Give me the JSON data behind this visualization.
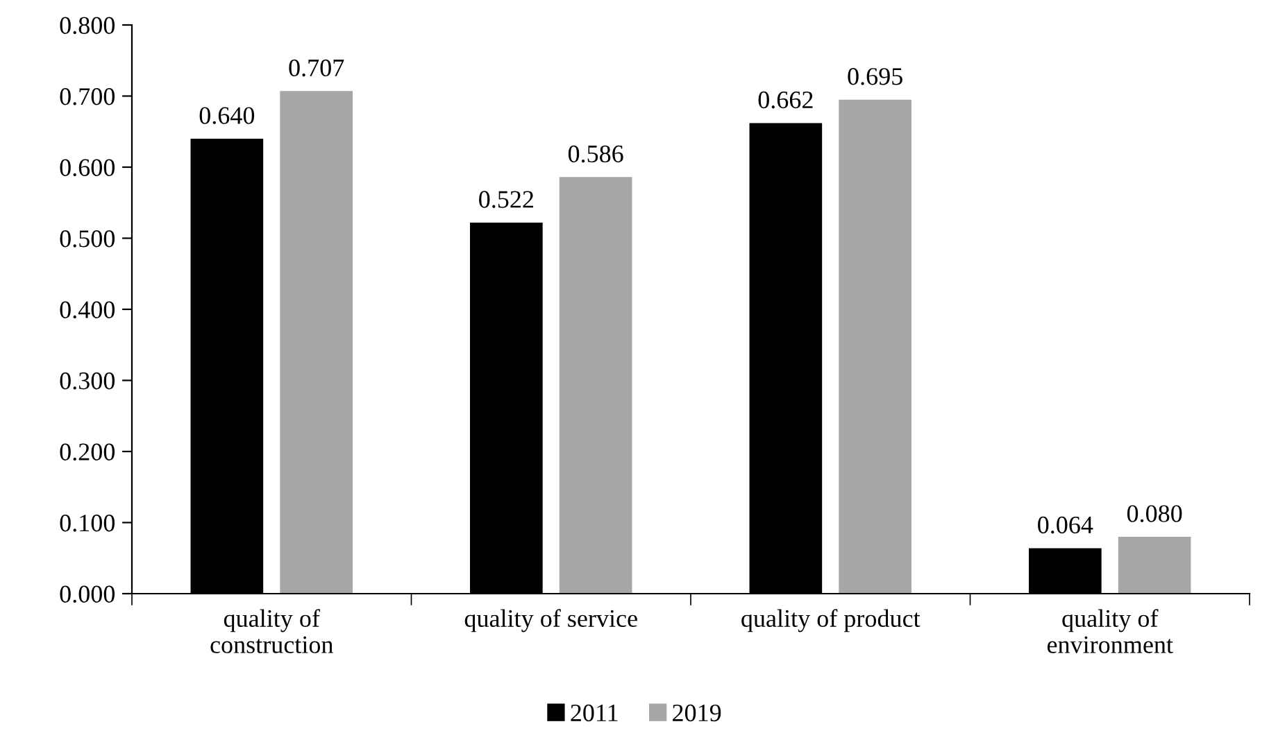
{
  "chart_data": {
    "type": "bar",
    "categories": [
      "quality of\nconstruction",
      "quality of service",
      "quality of product",
      "quality of\nenvironment"
    ],
    "series": [
      {
        "name": "2011",
        "color": "#000000",
        "values": [
          0.64,
          0.522,
          0.662,
          0.064
        ],
        "value_labels": [
          "0.640",
          "0.522",
          "0.662",
          "0.064"
        ]
      },
      {
        "name": "2019",
        "color": "#a6a6a6",
        "values": [
          0.707,
          0.586,
          0.695,
          0.08
        ],
        "value_labels": [
          "0.707",
          "0.586",
          "0.695",
          "0.080"
        ]
      }
    ],
    "ylim": [
      0,
      0.8
    ],
    "yticks": [
      {
        "value": 0,
        "label": "0.000"
      },
      {
        "value": 0.1,
        "label": "0.100"
      },
      {
        "value": 0.2,
        "label": "0.200"
      },
      {
        "value": 0.3,
        "label": "0.300"
      },
      {
        "value": 0.4,
        "label": "0.400"
      },
      {
        "value": 0.5,
        "label": "0.500"
      },
      {
        "value": 0.6,
        "label": "0.600"
      },
      {
        "value": 0.7,
        "label": "0.700"
      },
      {
        "value": 0.8,
        "label": "0.800"
      }
    ],
    "grid": false,
    "legend": "bottom"
  }
}
